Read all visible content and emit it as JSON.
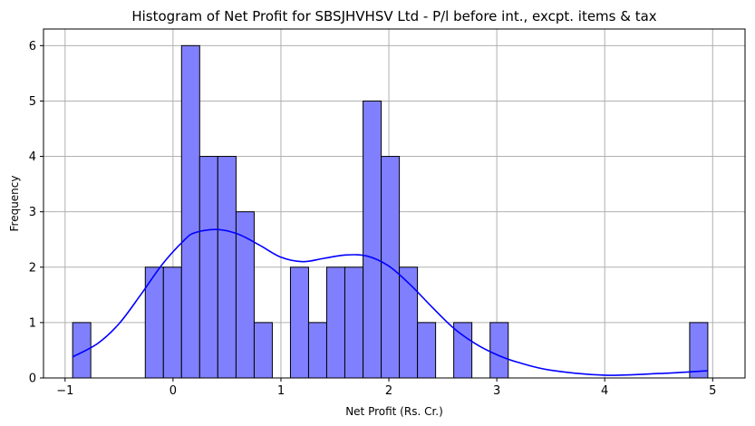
{
  "chart_data": {
    "type": "bar",
    "title": "Histogram of Net Profit for SBSJHVHSV Ltd - P/l before int., excpt. items & tax",
    "xlabel": "Net Profit (Rs. Cr.)",
    "ylabel": "Frequency",
    "xlim": [
      -1.2,
      5.3
    ],
    "ylim": [
      0,
      6.3
    ],
    "xticks": [
      -1,
      0,
      1,
      2,
      3,
      4,
      5
    ],
    "xtick_labels": [
      "−1",
      "0",
      "1",
      "2",
      "3",
      "4",
      "5"
    ],
    "yticks": [
      0,
      1,
      2,
      3,
      4,
      5,
      6
    ],
    "ytick_labels": [
      "0",
      "1",
      "2",
      "3",
      "4",
      "5",
      "6"
    ],
    "grid": true,
    "bin_edges": [
      -0.93,
      -0.762,
      -0.594,
      -0.425,
      -0.257,
      -0.089,
      0.079,
      0.247,
      0.415,
      0.584,
      0.752,
      0.92,
      1.088,
      1.256,
      1.424,
      1.592,
      1.761,
      1.929,
      2.097,
      2.265,
      2.433,
      2.601,
      2.769,
      2.938,
      3.106,
      3.274,
      3.442,
      3.61,
      3.778,
      3.946,
      4.115,
      4.283,
      4.451,
      4.619,
      4.787,
      4.955
    ],
    "counts": [
      1,
      0,
      0,
      0,
      2,
      2,
      6,
      4,
      4,
      3,
      1,
      0,
      2,
      1,
      2,
      2,
      5,
      4,
      2,
      1,
      0,
      1,
      0,
      1,
      0,
      0,
      0,
      0,
      0,
      0,
      0,
      0,
      0,
      0,
      1
    ],
    "kde": {
      "x": [
        -0.93,
        -0.7,
        -0.5,
        -0.3,
        -0.1,
        0.1,
        0.2,
        0.4,
        0.6,
        0.8,
        1.0,
        1.2,
        1.4,
        1.6,
        1.8,
        2.0,
        2.2,
        2.4,
        2.6,
        2.8,
        3.0,
        3.2,
        3.5,
        4.0,
        4.5,
        4.955
      ],
      "y": [
        0.38,
        0.62,
        0.98,
        1.5,
        2.05,
        2.48,
        2.62,
        2.68,
        2.6,
        2.4,
        2.18,
        2.1,
        2.16,
        2.22,
        2.2,
        2.02,
        1.68,
        1.28,
        0.9,
        0.62,
        0.42,
        0.28,
        0.14,
        0.05,
        0.08,
        0.13
      ]
    },
    "colors": {
      "bar_fill": "#8080ff",
      "bar_edge": "#000000",
      "kde_line": "#0000ff",
      "grid": "#b0b0b0"
    }
  }
}
